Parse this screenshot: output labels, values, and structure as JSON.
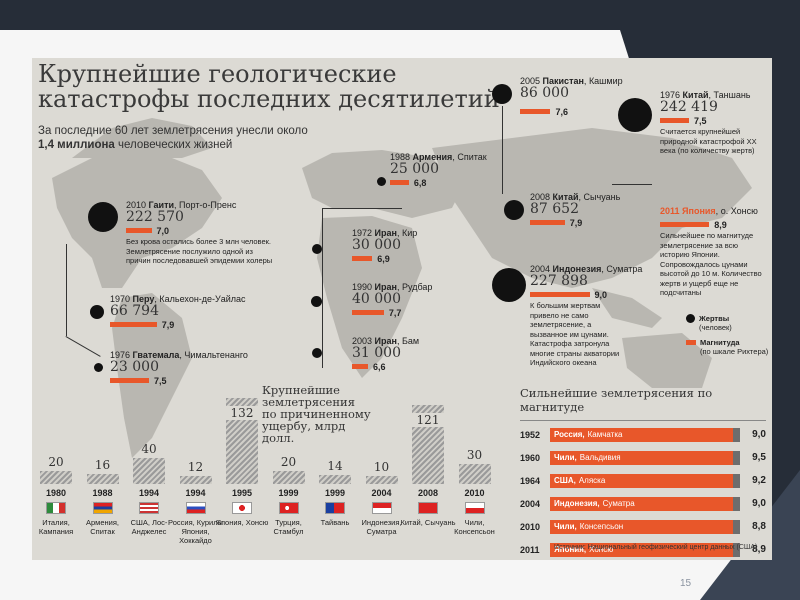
{
  "title": "Крупнейшие геологические катастрофы последних десятилетий",
  "subtitle": {
    "prefix": "За последние 60 лет землетрясения унесли около",
    "highlight": "1,4 миллиона",
    "suffix": "человеческих жизней"
  },
  "quakes": {
    "haiti": {
      "year": "2010",
      "country": "Гаити",
      "place": "Порт-о-Пренс",
      "deaths": "222 570",
      "magnitude": "7,0",
      "magnitude_value": 7.0,
      "note": "Без крова остались более 3 млн человек. Землетрясение послужило одной из причин последовавшей эпидемии холеры"
    },
    "peru": {
      "year": "1970",
      "country": "Перу",
      "place": "Кальехон-де-Уайлас",
      "deaths": "66 794",
      "magnitude": "7,9",
      "magnitude_value": 7.9
    },
    "guatemala": {
      "year": "1976",
      "country": "Гватемала",
      "place": "Чимальтенанго",
      "deaths": "23 000",
      "magnitude": "7,5",
      "magnitude_value": 7.5
    },
    "armenia": {
      "year": "1988",
      "country": "Армения",
      "place": "Спитак",
      "deaths": "25 000",
      "magnitude": "6,8",
      "magnitude_value": 6.8
    },
    "iran1972": {
      "year": "1972",
      "country": "Иран",
      "place": "Кир",
      "deaths": "30 000",
      "magnitude": "6,9",
      "magnitude_value": 6.9
    },
    "iran1990": {
      "year": "1990",
      "country": "Иран",
      "place": "Рудбар",
      "deaths": "40 000",
      "magnitude": "7,7",
      "magnitude_value": 7.7
    },
    "iran2003": {
      "year": "2003",
      "country": "Иран",
      "place": "Бам",
      "deaths": "31 000",
      "magnitude": "6,6",
      "magnitude_value": 6.6
    },
    "pakistan": {
      "year": "2005",
      "country": "Пакистан",
      "place": "Кашмир",
      "deaths": "86 000",
      "magnitude": "7,6",
      "magnitude_value": 7.6
    },
    "china1976": {
      "year": "1976",
      "country": "Китай",
      "place": "Таншань",
      "deaths": "242 419",
      "magnitude": "7,5",
      "magnitude_value": 7.5,
      "note": "Считается крупнейшей природной катастрофой XX века (по количеству жертв)"
    },
    "china2008": {
      "year": "2008",
      "country": "Китай",
      "place": "Сычуань",
      "deaths": "87 652",
      "magnitude": "7,9",
      "magnitude_value": 7.9
    },
    "japan": {
      "year": "2011",
      "country": "Япония",
      "place": "о. Хонсю",
      "magnitude": "8,9",
      "magnitude_value": 8.9,
      "note": "Сильнейшее по магнитуде землетрясение за всю историю Японии. Сопровождалось цунами высотой до 10 м. Количество жертв и ущерб еще не подсчитаны"
    },
    "indonesia": {
      "year": "2004",
      "country": "Индонезия",
      "place": "Суматра",
      "deaths": "227 898",
      "magnitude": "9,0",
      "magnitude_value": 9.0,
      "note": "К большим жертвам привело не само землетрясение, а вызванное им цунами. Катастрофа затронула многие страны акватории Индийского океана"
    }
  },
  "legend": {
    "victims_label": "Жертвы",
    "victims_sub": "(человек)",
    "magnitude_label": "Магнитуда",
    "magnitude_sub": "(по шкале Рихтера)"
  },
  "damage": {
    "title": "Крупнейшие землетрясения по причиненному ущербу, млрд долл.",
    "items": [
      {
        "value": 20,
        "year": "1980",
        "place": "Италия, Кампания",
        "flag": "italy"
      },
      {
        "value": 16,
        "year": "1988",
        "place": "Армения, Спитак",
        "flag": "armenia"
      },
      {
        "value": 40,
        "year": "1994",
        "place": "США, Лос-Анджелес",
        "flag": "usa"
      },
      {
        "value": 12,
        "year": "1994",
        "place": "Россия, Курилы Япония, Хоккайдо",
        "flag": "russia-japan"
      },
      {
        "value": 132,
        "year": "1995",
        "place": "Япония, Хонсю",
        "flag": "japan"
      },
      {
        "value": 20,
        "year": "1999",
        "place": "Турция, Стамбул",
        "flag": "turkey"
      },
      {
        "value": 14,
        "year": "1999",
        "place": "Тайвань",
        "flag": "taiwan"
      },
      {
        "value": 10,
        "year": "2004",
        "place": "Индонезия, Суматра",
        "flag": "indonesia"
      },
      {
        "value": 121,
        "year": "2008",
        "place": "Китай, Сычуань",
        "flag": "china"
      },
      {
        "value": 30,
        "year": "2010",
        "place": "Чили, Консепсьон",
        "flag": "chile"
      }
    ]
  },
  "magnitude_table": {
    "title": "Сильнейшие землетрясения по магнитуде",
    "rows": [
      {
        "year": "1952",
        "country": "Россия",
        "place": "Камчатка",
        "value": "9,0"
      },
      {
        "year": "1960",
        "country": "Чили",
        "place": "Вальдивия",
        "value": "9,5"
      },
      {
        "year": "1964",
        "country": "США",
        "place": "Аляска",
        "value": "9,2"
      },
      {
        "year": "2004",
        "country": "Индонезия",
        "place": "Суматра",
        "value": "9,0"
      },
      {
        "year": "2010",
        "country": "Чили",
        "place": "Консепсьон",
        "value": "8,8"
      },
      {
        "year": "2011",
        "country": "Япония",
        "place": "Хонсю",
        "value": "8,9"
      }
    ]
  },
  "source": "Источник: Национальный геофизический центр данных (США)",
  "page_number": "15",
  "colors": {
    "accent": "#e8572a",
    "background": "#dcdad4",
    "slide_frame": "#2c3440"
  }
}
